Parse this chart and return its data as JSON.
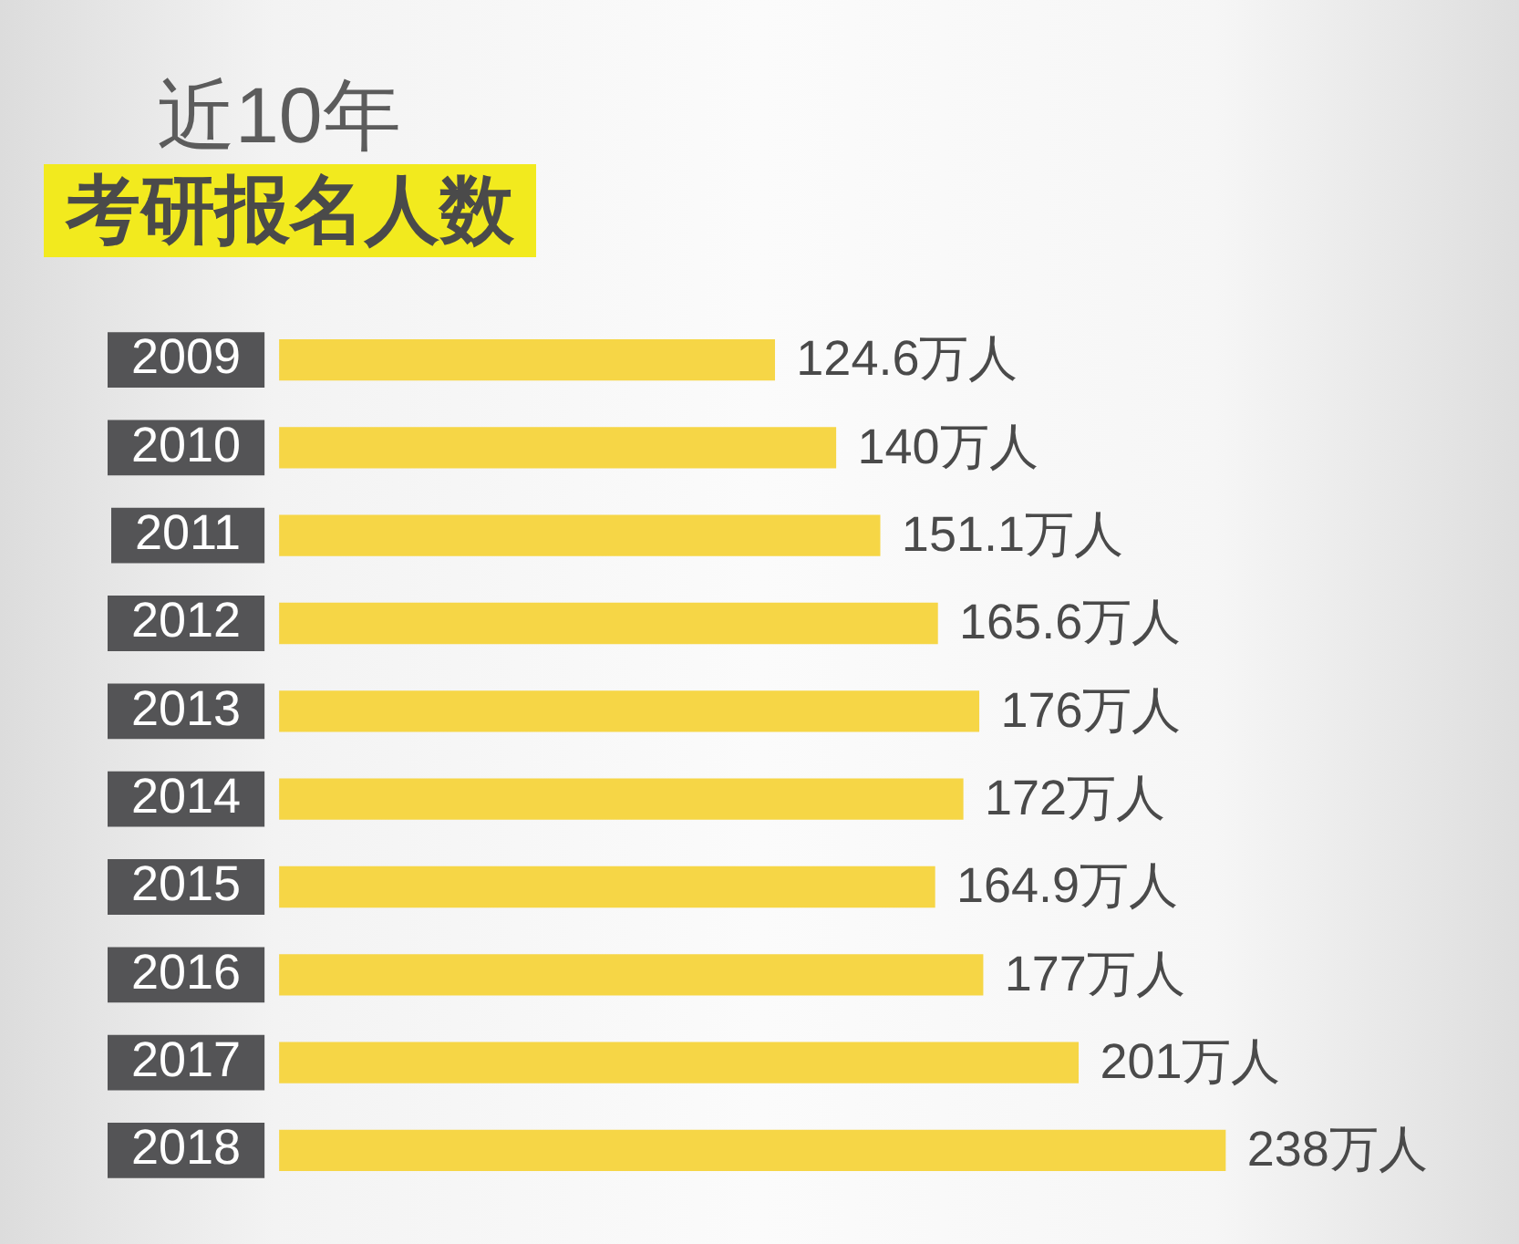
{
  "chart_data": {
    "type": "bar",
    "orientation": "horizontal",
    "title": "近10年",
    "subtitle": "考研报名人数",
    "categories": [
      "2009",
      "2010",
      "2011",
      "2012",
      "2013",
      "2014",
      "2015",
      "2016",
      "2017",
      "2018"
    ],
    "values": [
      124.6,
      140,
      151.1,
      165.6,
      176,
      172,
      164.9,
      177,
      201,
      238
    ],
    "color": "#f6d646",
    "value_labels": [
      "124.6万人",
      "140万人",
      "151.1万人",
      "165.6万人",
      "176万人",
      "172万人",
      "164.9万人",
      "177万人",
      "201万人",
      "238万人"
    ],
    "legend": false,
    "grid": false,
    "tick_labels": "y"
  }
}
